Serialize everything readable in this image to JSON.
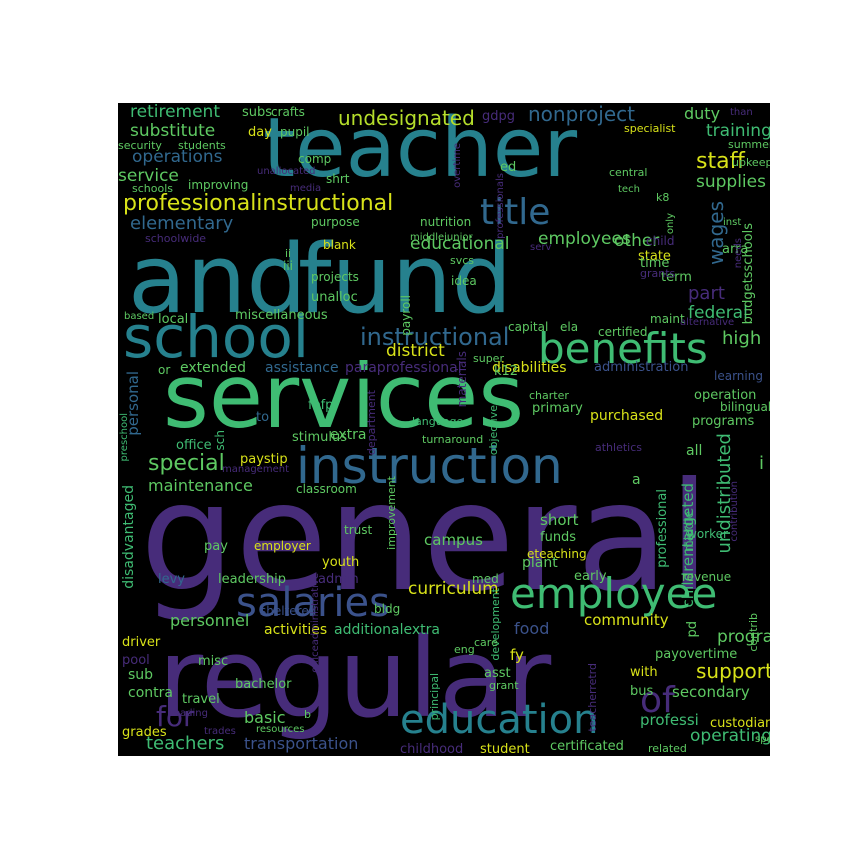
{
  "cloud": {
    "background": "#000000",
    "palette": {
      "purple": "#472c7a",
      "teal": "#26818e",
      "green": "#3fbc73",
      "yellow": "#d8e219",
      "blue": "#31688e",
      "dark": "#3b0f70"
    },
    "words": [
      {
        "text": "general",
        "color": "#472c7a"
      },
      {
        "text": "regular",
        "color": "#472c7a"
      },
      {
        "text": "and",
        "color": "#26818e"
      },
      {
        "text": "fund",
        "color": "#26818e"
      },
      {
        "text": "services",
        "color": "#3fbc73"
      },
      {
        "text": "teacher",
        "color": "#26818e"
      },
      {
        "text": "school",
        "color": "#26818e"
      },
      {
        "text": "instruction",
        "color": "#31688e"
      },
      {
        "text": "benefits",
        "color": "#3fbc73"
      },
      {
        "text": "employee",
        "color": "#3fbc73"
      },
      {
        "text": "education",
        "color": "#26818e"
      },
      {
        "text": "salaries",
        "color": "#3b528b"
      },
      {
        "text": "title",
        "color": "#31688e"
      },
      {
        "text": "of",
        "color": "#472c7a"
      },
      {
        "text": "for",
        "color": "#472c7a"
      },
      {
        "text": "professionalinstructional",
        "color": "#d8e219"
      },
      {
        "text": "instructional",
        "color": "#31688e"
      },
      {
        "text": "undesignated",
        "color": "#b5de2b"
      },
      {
        "text": "nonproject",
        "color": "#31688e"
      },
      {
        "text": "teachers",
        "color": "#3fbc73"
      },
      {
        "text": "support",
        "color": "#d8e219"
      },
      {
        "text": "special",
        "color": "#5ec962"
      },
      {
        "text": "staff",
        "color": "#d8e219"
      },
      {
        "text": "substitute",
        "color": "#5ec962"
      },
      {
        "text": "retirement",
        "color": "#3fbc73"
      },
      {
        "text": "operations",
        "color": "#31688e"
      },
      {
        "text": "elementary",
        "color": "#31688e"
      },
      {
        "text": "service",
        "color": "#5ec962"
      },
      {
        "text": "supplies",
        "color": "#5ec962"
      },
      {
        "text": "training",
        "color": "#3fbc73"
      },
      {
        "text": "other",
        "color": "#5ec962"
      },
      {
        "text": "wages",
        "color": "#31688e"
      },
      {
        "text": "part",
        "color": "#472c7a"
      },
      {
        "text": "duty",
        "color": "#5ec962"
      },
      {
        "text": "employees",
        "color": "#5ec962"
      },
      {
        "text": "educational",
        "color": "#5ec962"
      },
      {
        "text": "district",
        "color": "#d8e219"
      },
      {
        "text": "federal",
        "color": "#3fbc73"
      },
      {
        "text": "high",
        "color": "#5ec962"
      },
      {
        "text": "operating",
        "color": "#3fbc73"
      },
      {
        "text": "curriculum",
        "color": "#d8e219"
      },
      {
        "text": "transportation",
        "color": "#3b528b"
      },
      {
        "text": "basic",
        "color": "#5ec962"
      },
      {
        "text": "program",
        "color": "#5ec962"
      },
      {
        "text": "personnel",
        "color": "#5ec962"
      },
      {
        "text": "community",
        "color": "#d8e219"
      },
      {
        "text": "food",
        "color": "#3b528b"
      },
      {
        "text": "maintenance",
        "color": "#5ec962"
      },
      {
        "text": "extended",
        "color": "#5ec962"
      },
      {
        "text": "assistance",
        "color": "#31688e"
      },
      {
        "text": "paraprofessional",
        "color": "#472c7a"
      },
      {
        "text": "disabilities",
        "color": "#d8e219"
      },
      {
        "text": "administration",
        "color": "#3b528b"
      },
      {
        "text": "purchased",
        "color": "#d8e219"
      },
      {
        "text": "primary",
        "color": "#5ec962"
      },
      {
        "text": "undistributed",
        "color": "#3fbc73"
      },
      {
        "text": "childrentargeted",
        "color": "#3fbc73"
      },
      {
        "text": "disadvantaged",
        "color": "#3fbc73"
      },
      {
        "text": "activities",
        "color": "#d8e219"
      },
      {
        "text": "additionalextra",
        "color": "#3fbc73"
      },
      {
        "text": "personal",
        "color": "#31688e"
      },
      {
        "text": "secondary",
        "color": "#5ec962"
      },
      {
        "text": "custodian",
        "color": "#d8e219"
      },
      {
        "text": "certificated",
        "color": "#5ec962"
      },
      {
        "text": "student",
        "color": "#d8e219"
      },
      {
        "text": "childhood",
        "color": "#472c7a"
      },
      {
        "text": "professi",
        "color": "#3fbc73"
      },
      {
        "text": "payovertime",
        "color": "#5ec962"
      },
      {
        "text": "bus",
        "color": "#5ec962"
      },
      {
        "text": "with",
        "color": "#d8e219"
      },
      {
        "text": "pd",
        "color": "#5ec962"
      },
      {
        "text": "fy",
        "color": "#d8e219"
      },
      {
        "text": "asst",
        "color": "#5ec962"
      },
      {
        "text": "sub",
        "color": "#5ec962"
      },
      {
        "text": "misc",
        "color": "#5ec962"
      },
      {
        "text": "contra",
        "color": "#5ec962"
      },
      {
        "text": "travel",
        "color": "#5ec962"
      },
      {
        "text": "grades",
        "color": "#d8e219"
      },
      {
        "text": "bachelor",
        "color": "#5ec962"
      },
      {
        "text": "driver",
        "color": "#d8e219"
      },
      {
        "text": "pool",
        "color": "#472c7a"
      },
      {
        "text": "leadership",
        "color": "#5ec962"
      },
      {
        "text": "levy",
        "color": "#31688e"
      },
      {
        "text": "admin",
        "color": "#472c7a"
      },
      {
        "text": "youth",
        "color": "#d8e219"
      },
      {
        "text": "pay",
        "color": "#5ec962"
      },
      {
        "text": "employer",
        "color": "#d8e219"
      },
      {
        "text": "campus",
        "color": "#5ec962"
      },
      {
        "text": "short",
        "color": "#5ec962"
      },
      {
        "text": "funds",
        "color": "#5ec962"
      },
      {
        "text": "plant",
        "color": "#5ec962"
      },
      {
        "text": "early",
        "color": "#5ec962"
      },
      {
        "text": "revenue",
        "color": "#5ec962"
      },
      {
        "text": "worker",
        "color": "#3fbc73"
      },
      {
        "text": "middle",
        "color": "#3fbc73"
      },
      {
        "text": "eteaching",
        "color": "#d8e219"
      },
      {
        "text": "med",
        "color": "#5ec962"
      },
      {
        "text": "bldg",
        "color": "#5ec962"
      },
      {
        "text": "trust",
        "color": "#5ec962"
      },
      {
        "text": "sheltered",
        "color": "#3b528b"
      },
      {
        "text": "stimulus",
        "color": "#5ec962"
      },
      {
        "text": "extra",
        "color": "#5ec962"
      },
      {
        "text": "fefp",
        "color": "#3fbc73"
      },
      {
        "text": "to",
        "color": "#31688e"
      },
      {
        "text": "office",
        "color": "#3fbc73"
      },
      {
        "text": "paystip",
        "color": "#d8e219"
      },
      {
        "text": "classroom",
        "color": "#5ec962"
      },
      {
        "text": "management",
        "color": "#472c7a"
      },
      {
        "text": "preschool",
        "color": "#3fbc73"
      },
      {
        "text": "sch",
        "color": "#3fbc73"
      },
      {
        "text": "or",
        "color": "#5ec962"
      },
      {
        "text": "local",
        "color": "#5ec962"
      },
      {
        "text": "unalloc",
        "color": "#5ec962"
      },
      {
        "text": "miscellaneous",
        "color": "#5ec962"
      },
      {
        "text": "based",
        "color": "#5ec962"
      },
      {
        "text": "projects",
        "color": "#5ec962"
      },
      {
        "text": "iii",
        "color": "#5ec962"
      },
      {
        "text": "ii",
        "color": "#5ec962"
      },
      {
        "text": "blank",
        "color": "#d8e219"
      },
      {
        "text": "purpose",
        "color": "#5ec962"
      },
      {
        "text": "nutrition",
        "color": "#5ec962"
      },
      {
        "text": "middlejunior",
        "color": "#5ec962"
      },
      {
        "text": "svcs",
        "color": "#5ec962"
      },
      {
        "text": "idea",
        "color": "#5ec962"
      },
      {
        "text": "payroll",
        "color": "#5ec962"
      },
      {
        "text": "state",
        "color": "#d8e219"
      },
      {
        "text": "time",
        "color": "#5ec962"
      },
      {
        "text": "term",
        "color": "#5ec962"
      },
      {
        "text": "child",
        "color": "#472c7a"
      },
      {
        "text": "arra",
        "color": "#5ec962"
      },
      {
        "text": "grants",
        "color": "#472c7a"
      },
      {
        "text": "maint",
        "color": "#5ec962"
      },
      {
        "text": "budgetsschools",
        "color": "#5ec962"
      },
      {
        "text": "needs",
        "color": "#472c7a"
      },
      {
        "text": "alternative",
        "color": "#472c7a"
      },
      {
        "text": "certified",
        "color": "#5ec962"
      },
      {
        "text": "ela",
        "color": "#5ec962"
      },
      {
        "text": "capital",
        "color": "#5ec962"
      },
      {
        "text": "super",
        "color": "#5ec962"
      },
      {
        "text": "k12",
        "color": "#5ec962"
      },
      {
        "text": "materials",
        "color": "#472c7a"
      },
      {
        "text": "charter",
        "color": "#5ec962"
      },
      {
        "text": "objective",
        "color": "#3fbc73"
      },
      {
        "text": "language",
        "color": "#3fbc73"
      },
      {
        "text": "turnaround",
        "color": "#5ec962"
      },
      {
        "text": "department",
        "color": "#472c7a"
      },
      {
        "text": "learning",
        "color": "#3b528b"
      },
      {
        "text": "operation",
        "color": "#5ec962"
      },
      {
        "text": "bilingual",
        "color": "#5ec962"
      },
      {
        "text": "programs",
        "color": "#5ec962"
      },
      {
        "text": "athletics",
        "color": "#472c7a"
      },
      {
        "text": "all",
        "color": "#5ec962"
      },
      {
        "text": "i",
        "color": "#5ec962"
      },
      {
        "text": "a",
        "color": "#5ec962"
      },
      {
        "text": "improvement",
        "color": "#5ec962"
      },
      {
        "text": "professional",
        "color": "#3fbc73"
      },
      {
        "text": "contribution",
        "color": "#472c7a"
      },
      {
        "text": "contrib",
        "color": "#5ec962"
      },
      {
        "text": "para",
        "color": "#472c7a"
      },
      {
        "text": "development",
        "color": "#3fbc73"
      },
      {
        "text": "principal",
        "color": "#3fbc73"
      },
      {
        "text": "teacherretrd",
        "color": "#472c7a"
      },
      {
        "text": "eng",
        "color": "#5ec962"
      },
      {
        "text": "care",
        "color": "#5ec962"
      },
      {
        "text": "grant",
        "color": "#5ec962"
      },
      {
        "text": "officeadministrative",
        "color": "#472c7a"
      },
      {
        "text": "reading",
        "color": "#472c7a"
      },
      {
        "text": "trades",
        "color": "#472c7a"
      },
      {
        "text": "resources",
        "color": "#5ec962"
      },
      {
        "text": "b",
        "color": "#5ec962"
      },
      {
        "text": "related",
        "color": "#5ec962"
      },
      {
        "text": "spec",
        "color": "#5ec962"
      },
      {
        "text": "security",
        "color": "#5ec962"
      },
      {
        "text": "students",
        "color": "#5ec962"
      },
      {
        "text": "subs",
        "color": "#5ec962"
      },
      {
        "text": "crafts",
        "color": "#5ec962"
      },
      {
        "text": "day",
        "color": "#d8e219"
      },
      {
        "text": "pupil",
        "color": "#5ec962"
      },
      {
        "text": "gdpg",
        "color": "#472c7a"
      },
      {
        "text": "overtime",
        "color": "#472c7a"
      },
      {
        "text": "ed",
        "color": "#5ec962"
      },
      {
        "text": "professionals",
        "color": "#472c7a"
      },
      {
        "text": "comp",
        "color": "#5ec962"
      },
      {
        "text": "unallocated",
        "color": "#472c7a"
      },
      {
        "text": "media",
        "color": "#472c7a"
      },
      {
        "text": "shrt",
        "color": "#5ec962"
      },
      {
        "text": "improving",
        "color": "#5ec962"
      },
      {
        "text": "schools",
        "color": "#5ec962"
      },
      {
        "text": "schoolwide",
        "color": "#472c7a"
      },
      {
        "text": "serv",
        "color": "#472c7a"
      },
      {
        "text": "central",
        "color": "#5ec962"
      },
      {
        "text": "tech",
        "color": "#5ec962"
      },
      {
        "text": "k8",
        "color": "#5ec962"
      },
      {
        "text": "only",
        "color": "#5ec962"
      },
      {
        "text": "inst",
        "color": "#5ec962"
      },
      {
        "text": "upkeep",
        "color": "#5ec962"
      },
      {
        "text": "summer",
        "color": "#5ec962"
      },
      {
        "text": "specialist",
        "color": "#d8e219"
      },
      {
        "text": "than",
        "color": "#472c7a"
      }
    ]
  }
}
